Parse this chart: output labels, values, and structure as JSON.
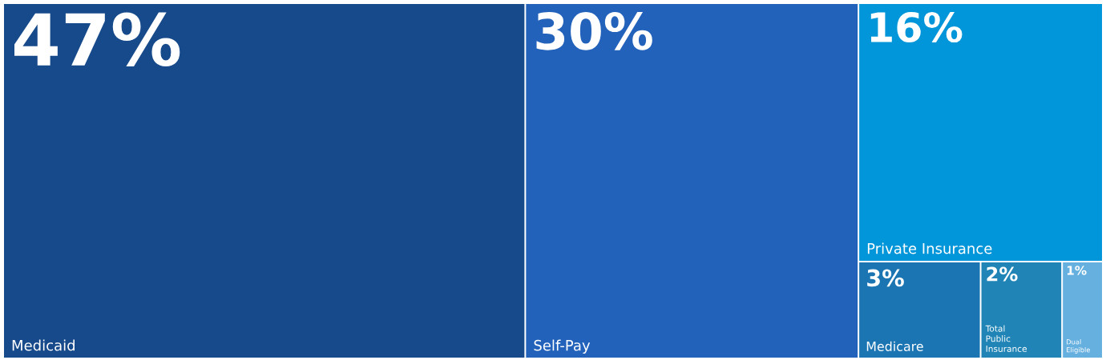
{
  "chart_data": {
    "type": "other",
    "categories": [
      "Medicaid",
      "Self-Pay",
      "Private Insurance",
      "Medicare",
      "Total Public Insurance",
      "Dual Eligible"
    ],
    "values": [
      47,
      30,
      16,
      3,
      2,
      1
    ],
    "value_labels": [
      "47%",
      "30%",
      "16%",
      "3%",
      "2%",
      "1%"
    ],
    "colors": [
      "#174a8b",
      "#2262bb",
      "#0096d9",
      "#1b75b3",
      "#2085b6",
      "#66b0e0"
    ]
  }
}
